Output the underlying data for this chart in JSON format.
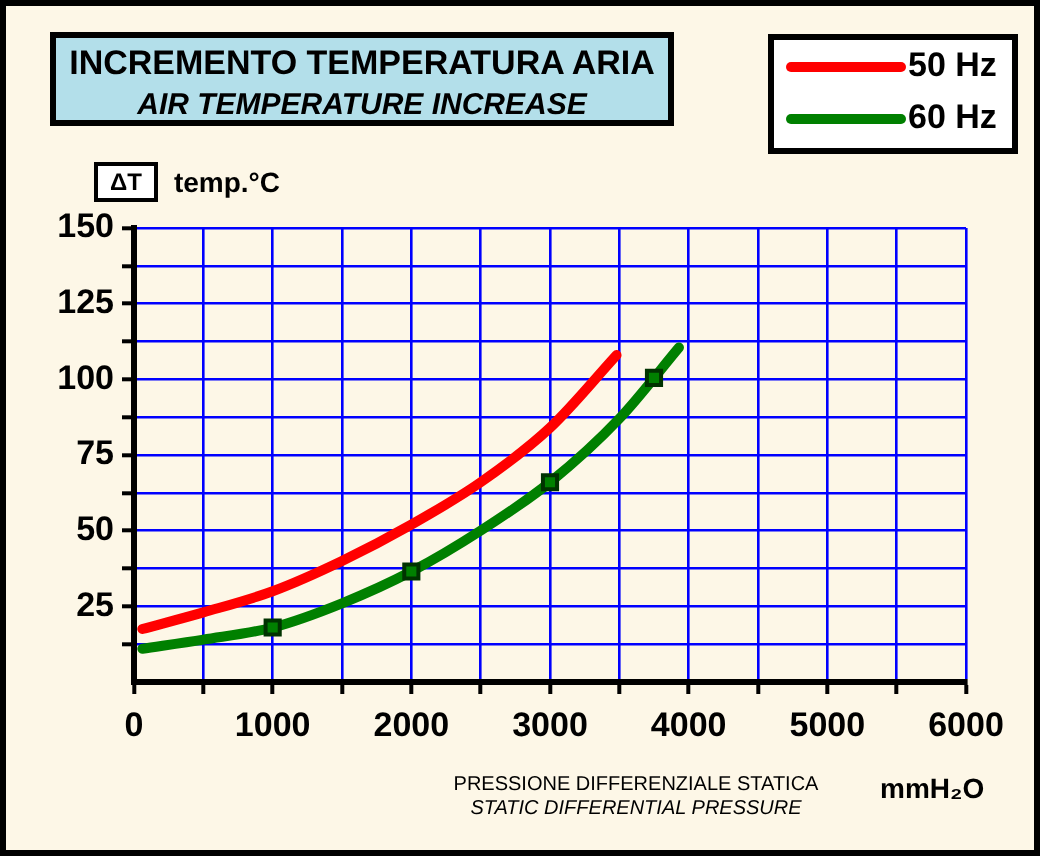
{
  "chart_data": {
    "type": "line",
    "title": "INCREMENTO TEMPERATURA ARIA",
    "subtitle": "AIR TEMPERATURE INCREASE",
    "ylabel": "ΔT temp.°C",
    "xlabel": "PRESSIONE DIFFERENZIALE STATICA\nSTATIC DIFFERENTIAL PRESSURE",
    "annotations": [
      "mmH₂O"
    ],
    "xlim": [
      0,
      6000
    ],
    "ylim": [
      0,
      150
    ],
    "xticks": [
      0,
      {
        "value": 500,
        "label": null
      },
      1000,
      {
        "value": 1500,
        "label": null
      },
      2000,
      {
        "value": 2500,
        "label": null
      },
      3000,
      {
        "value": 3500,
        "label": null
      },
      4000,
      {
        "value": 4500,
        "label": null
      },
      5000,
      {
        "value": 5500,
        "label": null
      },
      6000
    ],
    "yticks": [
      {
        "value": 12.5,
        "label": null
      },
      25,
      {
        "value": 37.5,
        "label": null
      },
      50,
      {
        "value": 62.5,
        "label": null
      },
      75,
      {
        "value": 87.5,
        "label": null
      },
      100,
      {
        "value": 112.5,
        "label": null
      },
      125,
      {
        "value": 137.5,
        "label": null
      },
      150
    ],
    "grid": true,
    "legend": "top right",
    "line_style": "solid",
    "series": [
      {
        "name": "50 Hz",
        "color": "#ff0000",
        "marker": "none",
        "x": [
          60,
          500,
          1000,
          1500,
          2000,
          2500,
          3000,
          3480
        ],
        "values": [
          17.5,
          23,
          30,
          40,
          52,
          66,
          84,
          108
        ]
      },
      {
        "name": "60 Hz",
        "color": "#008000",
        "marker": "none",
        "x": [
          60,
          500,
          1000,
          1500,
          2000,
          2500,
          3000,
          3500,
          3930
        ],
        "values": [
          11,
          14,
          18,
          26,
          36.5,
          50,
          66,
          87,
          110.5
        ]
      },
      {
        "type": "scatter",
        "color": "#008000",
        "marker": "square",
        "x": [
          1000,
          2000,
          3000,
          3750
        ],
        "values": [
          18,
          36.5,
          66,
          100.5
        ]
      }
    ]
  }
}
